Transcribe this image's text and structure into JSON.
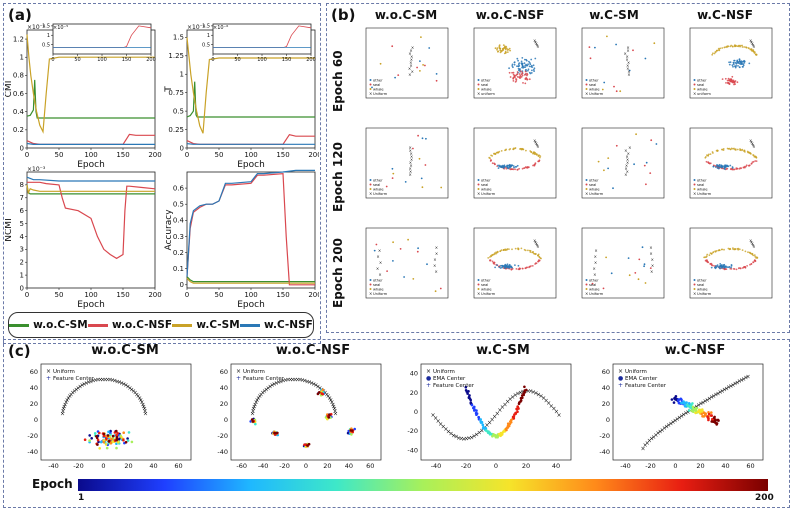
{
  "labels": {
    "a": "(a)",
    "b": "(b)",
    "c": "(c)"
  },
  "legend": [
    {
      "name": "w.o.C-SM",
      "color": "#3a8f2e"
    },
    {
      "name": "w.o.C-NSF",
      "color": "#d9484f"
    },
    {
      "name": "w.C-SM",
      "color": "#c9a227"
    },
    {
      "name": "w.C-NSF",
      "color": "#2a78b6"
    }
  ],
  "panel_a": {
    "exponents": {
      "cmi": "×10⁻⁴",
      "t": "×10⁻⁴",
      "ncmi": "×10⁻³",
      "inset_cmi": "×10⁻⁵",
      "inset_t": "×10⁻⁶"
    },
    "subplots": [
      {
        "id": "cmi",
        "type": "line",
        "ylabel": "CMI",
        "xlabel": "Epoch",
        "xlim": [
          0,
          200
        ],
        "ylim": [
          0,
          1.3
        ],
        "xticks": [
          0,
          50,
          100,
          150,
          200
        ],
        "yticks": [
          0,
          0.2,
          0.4,
          0.6,
          0.8,
          1.0,
          1.2
        ],
        "series": [
          {
            "name": "w.o.C-SM",
            "x": [
              0,
              5,
              10,
              12,
              14,
              16,
              20,
              30,
              50,
              100,
              150,
              200
            ],
            "y": [
              0.35,
              0.36,
              0.42,
              0.75,
              0.4,
              0.33,
              0.33,
              0.33,
              0.33,
              0.33,
              0.33,
              0.33
            ]
          },
          {
            "name": "w.o.C-NSF",
            "x": [
              0,
              10,
              20,
              50,
              100,
              150,
              160,
              170,
              200
            ],
            "y": [
              0.08,
              0.05,
              0.04,
              0.04,
              0.04,
              0.04,
              0.15,
              0.14,
              0.14
            ]
          },
          {
            "name": "w.C-SM",
            "x": [
              0,
              3,
              6,
              10,
              15,
              20,
              25,
              30,
              35,
              50,
              100,
              150,
              200
            ],
            "y": [
              1.25,
              1.0,
              0.8,
              0.6,
              0.4,
              0.25,
              0.18,
              0.6,
              0.98,
              1.0,
              1.0,
              1.0,
              1.0
            ]
          },
          {
            "name": "w.C-NSF",
            "x": [
              0,
              10,
              20,
              50,
              100,
              150,
              200
            ],
            "y": [
              0.05,
              0.04,
              0.04,
              0.04,
              0.04,
              0.04,
              0.04
            ]
          }
        ]
      },
      {
        "id": "t",
        "type": "line",
        "ylabel": "T",
        "xlabel": "Epoch",
        "xlim": [
          0,
          200
        ],
        "ylim": [
          0,
          1.6
        ],
        "xticks": [
          0,
          50,
          100,
          150,
          200
        ],
        "yticks": [
          0,
          0.25,
          0.5,
          0.75,
          1.0,
          1.25,
          1.5
        ],
        "series": [
          {
            "name": "w.o.C-SM",
            "x": [
              0,
              5,
              10,
              12,
              14,
              16,
              20,
              50,
              100,
              150,
              200
            ],
            "y": [
              0.42,
              0.44,
              0.5,
              0.9,
              0.45,
              0.42,
              0.42,
              0.42,
              0.42,
              0.42,
              0.42
            ]
          },
          {
            "name": "w.o.C-NSF",
            "x": [
              0,
              10,
              20,
              50,
              100,
              150,
              160,
              170,
              200
            ],
            "y": [
              0.1,
              0.06,
              0.05,
              0.05,
              0.05,
              0.05,
              0.18,
              0.16,
              0.16
            ]
          },
          {
            "name": "w.C-SM",
            "x": [
              0,
              3,
              6,
              10,
              15,
              20,
              25,
              30,
              35,
              50,
              100,
              150,
              200
            ],
            "y": [
              1.5,
              1.25,
              1.0,
              0.75,
              0.5,
              0.3,
              0.2,
              0.75,
              1.2,
              1.22,
              1.22,
              1.22,
              1.22
            ]
          },
          {
            "name": "w.C-NSF",
            "x": [
              0,
              10,
              20,
              50,
              100,
              150,
              200
            ],
            "y": [
              0.06,
              0.05,
              0.05,
              0.05,
              0.05,
              0.05,
              0.05
            ]
          }
        ]
      },
      {
        "id": "ncmi",
        "type": "line",
        "ylabel": "NCMI",
        "xlabel": "Epoch",
        "xlim": [
          0,
          200
        ],
        "ylim": [
          0,
          9
        ],
        "xticks": [
          0,
          50,
          100,
          150,
          200
        ],
        "yticks": [
          0,
          1,
          2,
          3,
          4,
          5,
          6,
          7,
          8
        ],
        "series": [
          {
            "name": "w.o.C-SM",
            "x": [
              0,
              2,
              5,
              10,
              15,
              20,
              50,
              100,
              150,
              200
            ],
            "y": [
              8.0,
              7.4,
              7.3,
              7.3,
              7.3,
              7.3,
              7.3,
              7.3,
              7.3,
              7.3
            ]
          },
          {
            "name": "w.o.C-NSF",
            "x": [
              0,
              10,
              20,
              30,
              50,
              55,
              60,
              80,
              100,
              110,
              120,
              130,
              140,
              150,
              153,
              156,
              160,
              180,
              200
            ],
            "y": [
              8.2,
              8.2,
              8.2,
              8.1,
              8.0,
              7.0,
              6.2,
              6.0,
              5.4,
              4.0,
              3.0,
              2.6,
              2.3,
              2.6,
              6.0,
              7.9,
              7.9,
              7.8,
              7.7
            ]
          },
          {
            "name": "w.C-SM",
            "x": [
              0,
              2,
              5,
              10,
              20,
              50,
              100,
              150,
              200
            ],
            "y": [
              8.0,
              7.4,
              7.7,
              7.6,
              7.5,
              7.5,
              7.5,
              7.5,
              7.5
            ]
          },
          {
            "name": "w.C-NSF",
            "x": [
              0,
              10,
              20,
              50,
              100,
              150,
              200
            ],
            "y": [
              8.6,
              8.4,
              8.4,
              8.3,
              8.3,
              8.3,
              8.3
            ]
          }
        ]
      },
      {
        "id": "acc",
        "type": "line",
        "ylabel": "Accuracy",
        "xlabel": "Epoch",
        "xlim": [
          0,
          200
        ],
        "ylim": [
          -0.02,
          0.7
        ],
        "xticks": [
          0,
          50,
          100,
          150,
          200
        ],
        "yticks": [
          0.0,
          0.1,
          0.2,
          0.3,
          0.4,
          0.5,
          0.6
        ],
        "series": [
          {
            "name": "w.o.C-SM",
            "x": [
              0,
              5,
              10,
              20,
              50,
              100,
              150,
              200
            ],
            "y": [
              0.05,
              0.03,
              0.02,
              0.02,
              0.02,
              0.02,
              0.02,
              0.02
            ]
          },
          {
            "name": "w.o.C-NSF",
            "x": [
              0,
              5,
              10,
              20,
              30,
              40,
              50,
              60,
              70,
              100,
              110,
              120,
              150,
              155,
              160,
              200
            ],
            "y": [
              0.05,
              0.35,
              0.45,
              0.48,
              0.5,
              0.5,
              0.52,
              0.62,
              0.62,
              0.63,
              0.68,
              0.68,
              0.69,
              0.3,
              0.0,
              0.0
            ]
          },
          {
            "name": "w.C-SM",
            "x": [
              0,
              5,
              10,
              20,
              50,
              100,
              150,
              200
            ],
            "y": [
              0.04,
              0.02,
              0.01,
              0.01,
              0.01,
              0.01,
              0.01,
              0.01
            ]
          },
          {
            "name": "w.C-NSF",
            "x": [
              0,
              5,
              10,
              20,
              30,
              40,
              50,
              60,
              70,
              100,
              110,
              120,
              150,
              170,
              200
            ],
            "y": [
              0.05,
              0.38,
              0.46,
              0.49,
              0.5,
              0.5,
              0.52,
              0.63,
              0.63,
              0.64,
              0.69,
              0.69,
              0.7,
              0.71,
              0.71
            ]
          }
        ]
      }
    ],
    "insets": [
      {
        "of": "cmi",
        "xlim": [
          0,
          200
        ],
        "ylim": [
          0,
          1.6
        ],
        "xticks": [
          0,
          50,
          100,
          150,
          200
        ],
        "yticks": [
          0.5,
          1.0,
          1.5
        ],
        "series": [
          {
            "name": "w.o.C-NSF",
            "x": [
              0,
              50,
              100,
              145,
              150,
              160,
              175,
              200
            ],
            "y": [
              0.35,
              0.35,
              0.35,
              0.35,
              0.4,
              1.0,
              1.5,
              1.4
            ]
          },
          {
            "name": "w.C-NSF",
            "x": [
              0,
              50,
              100,
              150,
              200
            ],
            "y": [
              0.35,
              0.35,
              0.35,
              0.35,
              0.35
            ]
          }
        ]
      },
      {
        "of": "t",
        "xlim": [
          0,
          200
        ],
        "ylim": [
          0,
          1.6
        ],
        "xticks": [
          0,
          50,
          100,
          150,
          200
        ],
        "yticks": [
          0.5,
          1.0,
          1.5
        ],
        "series": [
          {
            "name": "w.o.C-NSF",
            "x": [
              0,
              50,
              100,
              145,
              150,
              160,
              175,
              200
            ],
            "y": [
              0.35,
              0.35,
              0.35,
              0.35,
              0.4,
              1.0,
              1.5,
              1.4
            ]
          },
          {
            "name": "w.C-NSF",
            "x": [
              0,
              50,
              100,
              150,
              200
            ],
            "y": [
              0.35,
              0.35,
              0.35,
              0.35,
              0.35
            ]
          }
        ]
      }
    ]
  },
  "panel_b": {
    "columns": [
      "w.o.C-SM",
      "w.o.C-NSF",
      "w.C-SM",
      "w.C-NSF"
    ],
    "rows": [
      "Epoch 60",
      "Epoch 120",
      "Epoch 200"
    ],
    "legend_entries": [
      "other",
      "seal",
      "whale",
      "Uniform"
    ],
    "legend_entries_alt": [
      "other",
      "seal",
      "whale",
      "uniform"
    ]
  },
  "panel_c": {
    "titles": [
      "w.o.C-SM",
      "w.o.C-NSF",
      "w.C-SM",
      "w.C-NSF"
    ],
    "legends": [
      [
        "Uniform",
        "Feature Center"
      ],
      [
        "Uniform",
        "Feature Center"
      ],
      [
        "Uniform",
        "EMA Center",
        "Feature Center"
      ],
      [
        "Uniform",
        "EMA Center",
        "Feature Center"
      ]
    ],
    "xticks": [
      [
        -40,
        -20,
        0,
        20,
        40,
        60
      ],
      [
        -60,
        -40,
        -20,
        0,
        20,
        40,
        60
      ],
      [
        -40,
        -20,
        0,
        20,
        40
      ],
      [
        -40,
        -20,
        0,
        20,
        40,
        60
      ]
    ],
    "yticks": [
      [
        -40,
        -20,
        0,
        20,
        40,
        60
      ],
      [
        -40,
        -20,
        0,
        20,
        40,
        60
      ],
      [
        -40,
        -20,
        0,
        20,
        40
      ],
      [
        -40,
        -20,
        0,
        20,
        40,
        60
      ]
    ],
    "colorbar": {
      "label": "Epoch",
      "min": "1",
      "max": "200"
    }
  }
}
